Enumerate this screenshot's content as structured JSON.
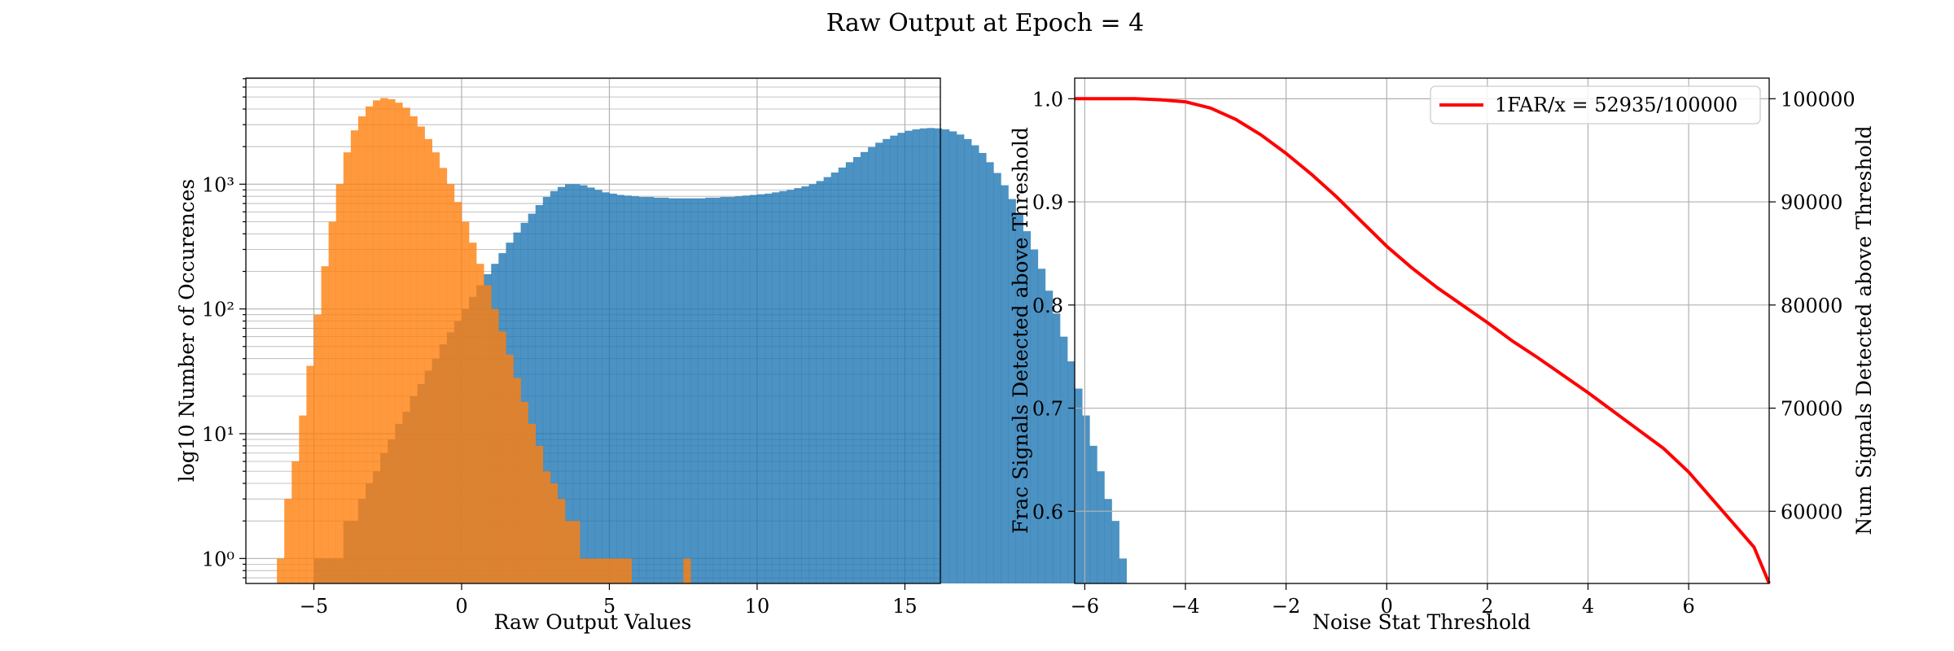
{
  "figure": {
    "title": "Raw Output at Epoch = 4"
  },
  "chart_data": [
    {
      "type": "bar",
      "subtype": "histogram",
      "xlabel": "Raw Output Values",
      "ylabel": "log10 Number of Occurences",
      "xlim": [
        -7.3,
        16.2
      ],
      "ylim_log10": [
        -0.2,
        3.85
      ],
      "yscale": "log",
      "grid": true,
      "xticks": [
        -5,
        0,
        5,
        10,
        15
      ],
      "xtick_labels": [
        "−5",
        "0",
        "5",
        "10",
        "15"
      ],
      "yticks": [
        0,
        1,
        2,
        3
      ],
      "ytick_labels": [
        "10⁰",
        "10¹",
        "10²",
        "10³"
      ],
      "series": [
        {
          "color": "#1f77b4",
          "bin_start": -5.0,
          "bin_width": 0.25,
          "values": [
            1,
            1,
            1,
            1,
            2,
            2,
            3,
            4,
            5,
            7,
            9,
            12,
            15,
            20,
            25,
            32,
            40,
            52,
            65,
            80,
            100,
            125,
            155,
            190,
            230,
            280,
            340,
            410,
            490,
            580,
            680,
            790,
            880,
            950,
            1000,
            1000,
            980,
            940,
            900,
            860,
            840,
            820,
            810,
            800,
            790,
            790,
            780,
            780,
            770,
            770,
            770,
            770,
            770,
            780,
            780,
            790,
            790,
            800,
            810,
            820,
            830,
            840,
            860,
            880,
            900,
            930,
            960,
            1000,
            1060,
            1140,
            1240,
            1360,
            1500,
            1650,
            1810,
            1980,
            2150,
            2300,
            2450,
            2580,
            2680,
            2750,
            2800,
            2820,
            2800,
            2750,
            2650,
            2500,
            2300,
            2050,
            1780,
            1500,
            1230,
            980,
            760,
            570,
            420,
            300,
            210,
            140,
            92,
            60,
            38,
            23,
            14,
            8,
            5,
            3,
            2,
            1
          ]
        },
        {
          "color": "#ff7f0e",
          "bin_start": -6.25,
          "bin_width": 0.25,
          "values": [
            1,
            3,
            6,
            14,
            35,
            90,
            220,
            500,
            1000,
            1800,
            2700,
            3500,
            4200,
            4700,
            4900,
            4800,
            4500,
            4100,
            3500,
            2900,
            2300,
            1800,
            1350,
            1000,
            720,
            500,
            340,
            230,
            155,
            100,
            66,
            43,
            28,
            18,
            12,
            8,
            5,
            4,
            3,
            2,
            2,
            1,
            1,
            1,
            1,
            1,
            1,
            1,
            0,
            0,
            0,
            0,
            0,
            0,
            0,
            1,
            0,
            0,
            0,
            0,
            0,
            0,
            0,
            0,
            0,
            0,
            0,
            0,
            0,
            0,
            0,
            0,
            0,
            0,
            0,
            0,
            0,
            0,
            0,
            0,
            0,
            0,
            0,
            0,
            0,
            0,
            0,
            0,
            0,
            0,
            0,
            0,
            0,
            0,
            0,
            0,
            0,
            0,
            0,
            0,
            0,
            0,
            0,
            0,
            0,
            0,
            0,
            0,
            0,
            0,
            0,
            0,
            0,
            0,
            0,
            0,
            0,
            0,
            0,
            0
          ]
        }
      ]
    },
    {
      "type": "line",
      "xlabel": "Noise Stat Threshold",
      "ylabel": "Frac Signals Detected above Threshold",
      "ylabel_right": "Num Signals Detected above Threshold",
      "xlim": [
        -6.2,
        7.6
      ],
      "ylim": [
        0.53,
        1.02
      ],
      "ylim_right": [
        53000,
        102000
      ],
      "grid": true,
      "xticks": [
        -6,
        -4,
        -2,
        0,
        2,
        4,
        6
      ],
      "xtick_labels": [
        "−6",
        "−4",
        "−2",
        "0",
        "2",
        "4",
        "6"
      ],
      "yticks": [
        0.6,
        0.7,
        0.8,
        0.9,
        1.0
      ],
      "ytick_labels": [
        "0.6",
        "0.7",
        "0.8",
        "0.9",
        "1.0"
      ],
      "yticks_right": [
        60000,
        70000,
        80000,
        90000,
        100000
      ],
      "ytick_labels_right": [
        "60000",
        "70000",
        "80000",
        "90000",
        "100000"
      ],
      "legend": {
        "placement": "top-right",
        "label": "1FAR/x = 52935/100000"
      },
      "series": [
        {
          "color": "#ff0000",
          "x": [
            -6.2,
            -5.0,
            -4.5,
            -4.0,
            -3.5,
            -3.0,
            -2.5,
            -2.0,
            -1.5,
            -1.0,
            -0.5,
            0.0,
            0.5,
            1.0,
            1.5,
            2.0,
            2.5,
            3.0,
            3.5,
            4.0,
            4.5,
            5.0,
            5.5,
            6.0,
            6.5,
            7.0,
            7.3,
            7.6
          ],
          "y": [
            1.0,
            1.0,
            0.999,
            0.997,
            0.991,
            0.98,
            0.965,
            0.947,
            0.927,
            0.905,
            0.881,
            0.857,
            0.836,
            0.817,
            0.8,
            0.783,
            0.765,
            0.749,
            0.732,
            0.715,
            0.697,
            0.679,
            0.661,
            0.638,
            0.61,
            0.582,
            0.565,
            0.53
          ]
        }
      ]
    }
  ]
}
